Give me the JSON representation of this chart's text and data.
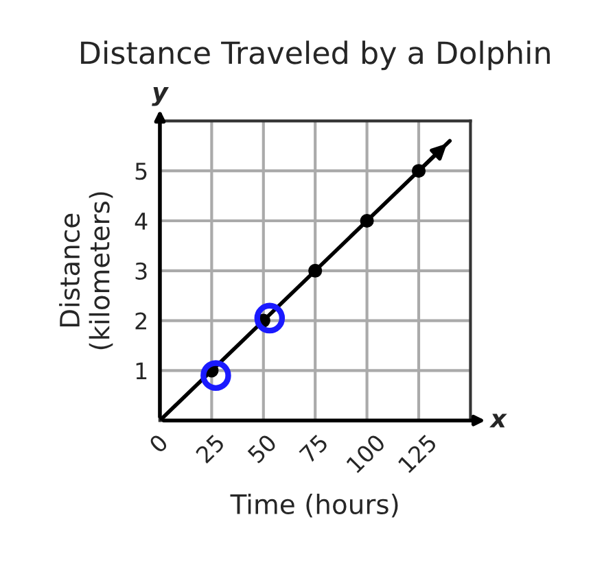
{
  "chart_data": {
    "type": "line",
    "title": "Distance Traveled by a Dolphin",
    "xlabel": "Time (hours)",
    "ylabel": "Distance\n(kilometers)",
    "series": [
      {
        "color": "#000000",
        "x": [
          0,
          140
        ],
        "values": [
          0,
          5.6
        ],
        "marker": "none"
      },
      {
        "type": "scatter",
        "color": "#000000",
        "x": [
          25,
          50,
          75,
          100,
          125
        ],
        "values": [
          1,
          2,
          3,
          4,
          5
        ],
        "marker": "circle"
      }
    ],
    "xlim": [
      0,
      150
    ],
    "ylim": [
      0,
      6
    ],
    "xticks": [
      0,
      25,
      50,
      75,
      100,
      125
    ],
    "yticks": [
      1,
      2,
      3,
      4,
      5
    ],
    "grid": true,
    "annotations": [
      "x",
      "y"
    ]
  }
}
